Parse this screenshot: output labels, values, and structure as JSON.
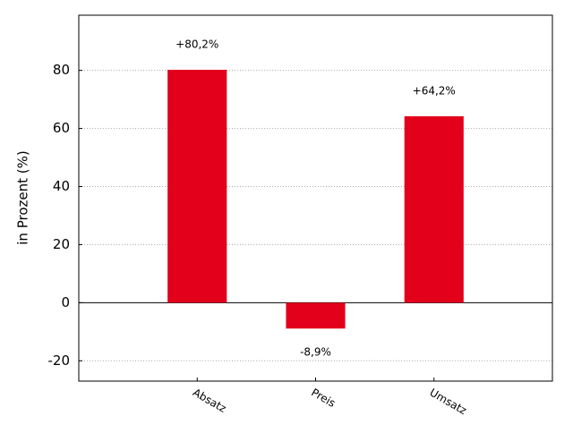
{
  "chart_data": {
    "type": "bar",
    "y_label": "in Prozent (%)",
    "categories": [
      "Absatz",
      "Preis",
      "Umsatz"
    ],
    "values": [
      80.2,
      -8.9,
      64.2
    ],
    "value_labels": [
      "+80,2%",
      "-8,9%",
      "+64,2%"
    ],
    "color": "#e2001a",
    "ylim": [
      -27,
      99
    ],
    "yticks": [
      -20,
      0,
      20,
      40,
      60,
      80
    ],
    "grid": true
  }
}
